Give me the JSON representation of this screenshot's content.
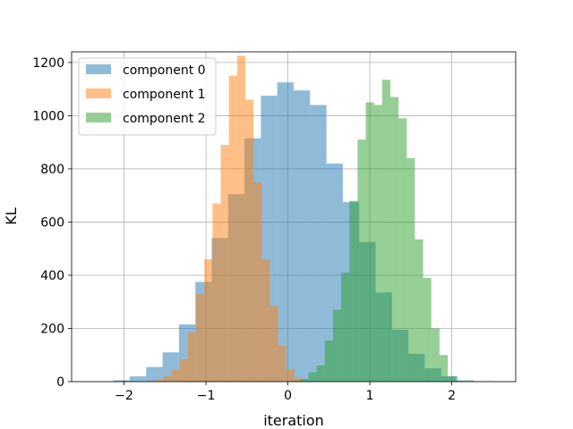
{
  "chart_data": {
    "type": "bar",
    "subtype": "overlapping-histogram",
    "title": "",
    "xlabel": "iteration",
    "ylabel": "KL",
    "xlim": [
      -2.64,
      2.78
    ],
    "ylim": [
      0,
      1240
    ],
    "xticks": [
      -2,
      -1,
      0,
      1,
      2
    ],
    "xtick_labels": [
      "−2",
      "−1",
      "0",
      "1",
      "2"
    ],
    "yticks": [
      0,
      200,
      400,
      600,
      800,
      1000,
      1200
    ],
    "ytick_labels": [
      "0",
      "200",
      "400",
      "600",
      "800",
      "1000",
      "1200"
    ],
    "grid": true,
    "legend_position": "top-left",
    "alpha": 0.5,
    "series": [
      {
        "name": "component 0",
        "color": "#1f77b4",
        "bin_edges": [
          -2.13,
          -1.93,
          -1.73,
          -1.53,
          -1.33,
          -1.13,
          -0.93,
          -0.73,
          -0.53,
          -0.33,
          -0.13,
          0.07,
          0.27,
          0.47,
          0.67,
          0.87,
          1.07,
          1.27,
          1.47,
          1.67,
          1.87,
          2.07,
          2.27,
          2.47
        ],
        "counts": [
          5,
          20,
          55,
          110,
          215,
          375,
          540,
          705,
          915,
          1075,
          1125,
          1095,
          1040,
          820,
          675,
          525,
          335,
          195,
          105,
          50,
          20,
          5,
          2
        ]
      },
      {
        "name": "component 1",
        "color": "#ff7f0e",
        "bin_edges": [
          -1.82,
          -1.72,
          -1.62,
          -1.52,
          -1.42,
          -1.32,
          -1.22,
          -1.12,
          -1.02,
          -0.92,
          -0.82,
          -0.72,
          -0.62,
          -0.52,
          -0.42,
          -0.32,
          -0.22,
          -0.12,
          -0.02,
          0.08,
          0.18
        ],
        "counts": [
          1,
          3,
          8,
          20,
          45,
          85,
          185,
          330,
          460,
          670,
          890,
          1150,
          1225,
          1060,
          750,
          460,
          285,
          135,
          45,
          12
        ]
      },
      {
        "name": "component 2",
        "color": "#2ca02c",
        "bin_edges": [
          0.05,
          0.15,
          0.25,
          0.35,
          0.45,
          0.55,
          0.65,
          0.75,
          0.85,
          0.95,
          1.05,
          1.15,
          1.25,
          1.35,
          1.45,
          1.55,
          1.65,
          1.75,
          1.85,
          1.95,
          2.05,
          2.15
        ],
        "counts": [
          3,
          10,
          35,
          60,
          155,
          270,
          410,
          680,
          910,
          1050,
          1040,
          1135,
          1070,
          990,
          840,
          535,
          390,
          200,
          100,
          20,
          3
        ]
      }
    ]
  }
}
